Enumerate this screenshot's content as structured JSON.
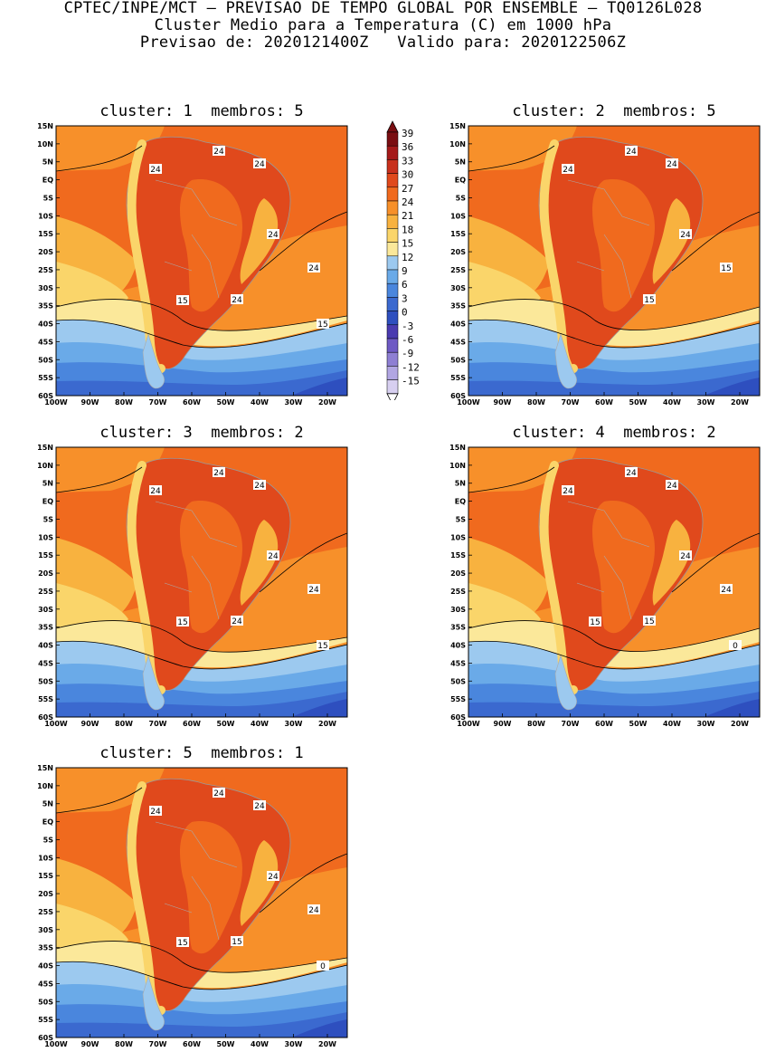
{
  "header": {
    "line1": "CPTEC/INPE/MCT – PREVISAO DE TEMPO GLOBAL POR ENSEMBLE – TQ0126L028",
    "line2": "Cluster Medio para a Temperatura (C) em 1000 hPa",
    "line3": "Previsao de: 2020121400Z   Valido para: 2020122506Z"
  },
  "panels": [
    {
      "title": "cluster: 1  membros: 5",
      "contour_labels": [
        "24",
        "24",
        "24",
        "24",
        "24",
        "24",
        "15",
        "15"
      ]
    },
    {
      "title": "cluster: 2  membros: 5",
      "contour_labels": [
        "24",
        "24",
        "24",
        "24",
        "15",
        "15"
      ]
    },
    {
      "title": "cluster: 3  membros: 2",
      "contour_labels": [
        "24",
        "24",
        "24",
        "24",
        "24",
        "24",
        "15",
        "15"
      ]
    },
    {
      "title": "cluster: 4  membros: 2",
      "contour_labels": [
        "24",
        "24",
        "24",
        "24",
        "24",
        "15",
        "15",
        "0"
      ]
    },
    {
      "title": "cluster: 5  membros: 1",
      "contour_labels": [
        "24",
        "24",
        "24",
        "24",
        "24",
        "15",
        "15",
        "0"
      ]
    }
  ],
  "lat_labels": [
    "15N",
    "10N",
    "5N",
    "EQ",
    "5S",
    "10S",
    "15S",
    "20S",
    "25S",
    "30S",
    "35S",
    "40S",
    "45S",
    "50S",
    "55S",
    "60S"
  ],
  "lon_labels": [
    "100W",
    "90W",
    "80W",
    "70W",
    "60W",
    "50W",
    "40W",
    "30W",
    "20W"
  ],
  "colorbar": {
    "labels": [
      "39",
      "36",
      "33",
      "30",
      "27",
      "24",
      "21",
      "18",
      "15",
      "12",
      "9",
      "6",
      "3",
      "0",
      "-3",
      "-6",
      "-9",
      "-12",
      "-15"
    ],
    "colors": [
      "#7a0e12",
      "#a51a1a",
      "#c8301d",
      "#e0491c",
      "#f06a1e",
      "#f7902a",
      "#f8b23f",
      "#fad56a",
      "#fbe89a",
      "#9cc9ef",
      "#6aaae8",
      "#4a86dd",
      "#3b69cf",
      "#2e4fbf",
      "#4a3bb0",
      "#6e5ac4",
      "#8e7fd3",
      "#b1a6e2",
      "#d7cff0"
    ]
  }
}
